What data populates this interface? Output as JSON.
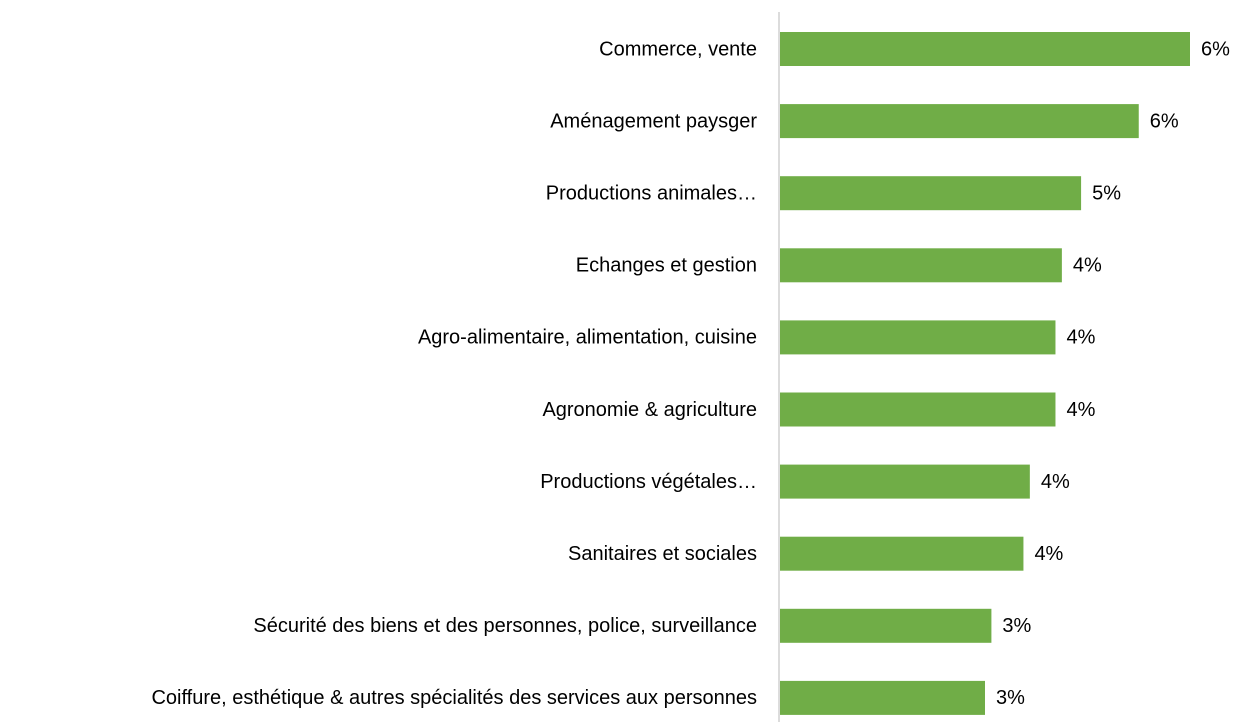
{
  "chart_data": {
    "type": "bar",
    "orientation": "horizontal",
    "categories": [
      "Commerce, vente",
      "Aménagement paysger",
      "Productions animales…",
      "Echanges et gestion",
      "Agro-alimentaire, alimentation, cuisine",
      "Agronomie & agriculture",
      "Productions végétales…",
      "Sanitaires et sociales",
      "Sécurité des biens et des personnes, police, surveillance",
      "Coiffure, esthétique & autres spécialités des services aux personnes"
    ],
    "values": [
      6.4,
      5.6,
      4.7,
      4.4,
      4.3,
      4.3,
      3.9,
      3.8,
      3.3,
      3.2
    ],
    "value_labels": [
      "6%",
      "6%",
      "5%",
      "4%",
      "4%",
      "4%",
      "4%",
      "4%",
      "3%",
      "3%"
    ],
    "color": "#70ad47"
  }
}
